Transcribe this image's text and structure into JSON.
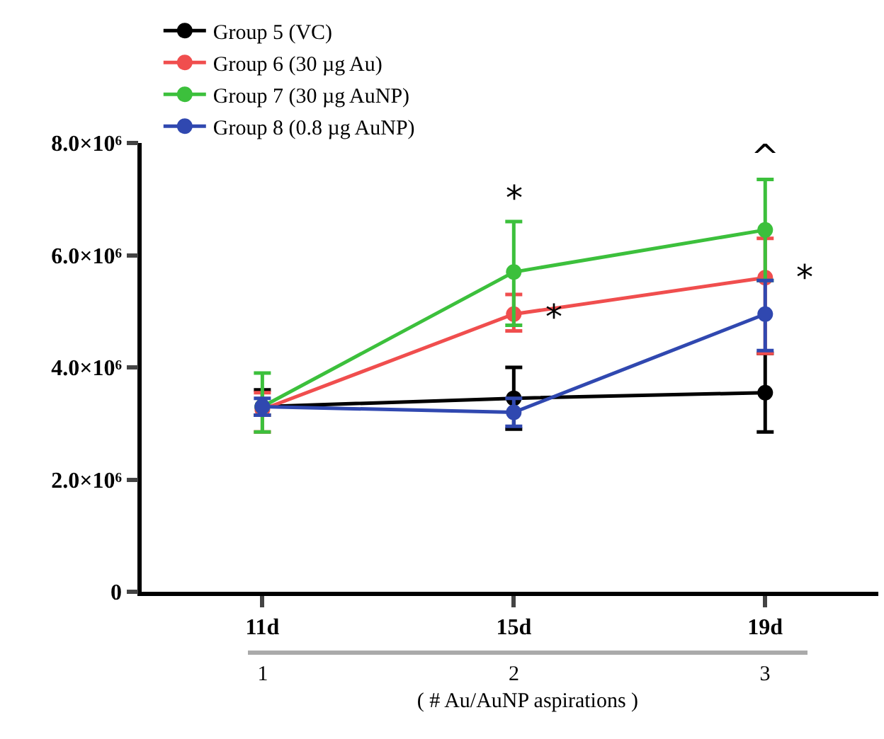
{
  "chart_data": {
    "type": "line",
    "categories": [
      "11d",
      "15d",
      "19d"
    ],
    "x2lim": [
      0.94,
      3.17
    ],
    "x2ticks": [
      1,
      2,
      3
    ],
    "x2label": "( # Au/AuNP aspirations )",
    "ylim": [
      0,
      8000000
    ],
    "yticks": [
      0,
      {
        "value": 2000000,
        "label": "2.0×10⁶"
      },
      {
        "value": 4000000,
        "label": "4.0×10⁶"
      },
      {
        "value": 6000000,
        "label": "6.0×10⁶"
      },
      {
        "value": 8000000,
        "label": "8.0×10⁶"
      }
    ],
    "marker": "circle",
    "line_style": "solid",
    "legend": "top left",
    "series": [
      {
        "name": "Group 5 (VC)",
        "color": "#000000",
        "values": [
          3300000,
          3450000,
          3550000
        ],
        "errors": [
          [
            3150000,
            3600000
          ],
          [
            2900000,
            4000000
          ],
          [
            2850000,
            4250000
          ]
        ]
      },
      {
        "name": "Group 6 (30 µg Au)",
        "color": "#f04e4e",
        "values": [
          3250000,
          4950000,
          5600000
        ],
        "errors": [
          [
            2850000,
            3550000
          ],
          [
            4650000,
            5300000
          ],
          [
            4250000,
            6300000
          ]
        ]
      },
      {
        "name": "Group 7 (30 µg AuNP)",
        "color": "#3cc03c",
        "values": [
          3300000,
          5700000,
          6450000
        ],
        "errors": [
          [
            2850000,
            3900000
          ],
          [
            4750000,
            6600000
          ],
          [
            5550000,
            7350000
          ]
        ]
      },
      {
        "name": "Group 8 (0.8 µg AuNP)",
        "color": "#3048b0",
        "values": [
          3300000,
          3200000,
          4950000
        ],
        "errors": [
          [
            3150000,
            3450000
          ],
          [
            2950000,
            3450000
          ],
          [
            4300000,
            5550000
          ]
        ]
      }
    ],
    "annotations": [
      {
        "text": "*",
        "x": "15d",
        "y": 6600000
      },
      {
        "text": "*",
        "x": "15d",
        "y": 4900000
      },
      {
        "text": "^",
        "x": "19d",
        "y": 7350000
      },
      {
        "text": "*",
        "x": "19d",
        "y": 5600000
      }
    ]
  }
}
